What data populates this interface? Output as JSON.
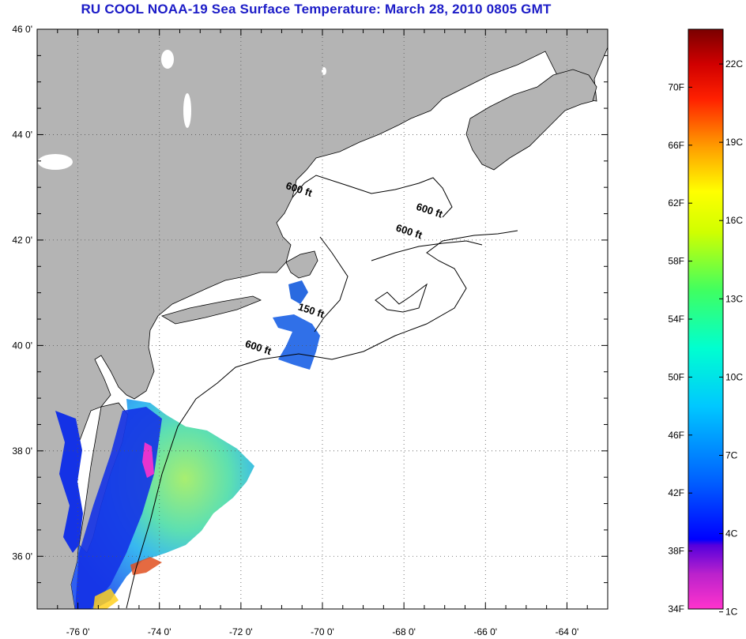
{
  "title": "RU COOL  NOAA-19  Sea Surface Temperature:  March 28, 2010 0805 GMT",
  "map": {
    "lon_range": [
      -77,
      -63
    ],
    "lat_range": [
      35,
      46
    ],
    "lon_ticks": [
      {
        "value": -76,
        "label": "-76 0'"
      },
      {
        "value": -74,
        "label": "-74 0'"
      },
      {
        "value": -72,
        "label": "-72 0'"
      },
      {
        "value": -70,
        "label": "-70 0'"
      },
      {
        "value": -68,
        "label": "-68 0'"
      },
      {
        "value": -66,
        "label": "-66 0'"
      },
      {
        "value": -64,
        "label": "-64 0'"
      }
    ],
    "lat_ticks": [
      {
        "value": 46,
        "label": "46 0'"
      },
      {
        "value": 44,
        "label": "44 0'"
      },
      {
        "value": 42,
        "label": "42 0'"
      },
      {
        "value": 40,
        "label": "40 0'"
      },
      {
        "value": 38,
        "label": "38 0'"
      },
      {
        "value": 36,
        "label": "36 0'"
      }
    ],
    "grid": true,
    "contour_labels": [
      {
        "text": "600 ft",
        "lon": -70.6,
        "lat": 42.9
      },
      {
        "text": "600 ft",
        "lon": -67.4,
        "lat": 42.5
      },
      {
        "text": "600 ft",
        "lon": -67.9,
        "lat": 42.1
      },
      {
        "text": "150 ft",
        "lon": -70.3,
        "lat": 40.6
      },
      {
        "text": "600 ft",
        "lon": -71.6,
        "lat": 39.9
      }
    ],
    "colors": {
      "land": "#b4b4b4",
      "water_nodata": "#ffffff",
      "sst_cold": "#1432e6",
      "sst_mid": "#4ec8f0",
      "sst_warm": "#a8ee70"
    }
  },
  "colorbar": {
    "fahrenheit_labels": [
      "34F",
      "38F",
      "42F",
      "46F",
      "50F",
      "54F",
      "58F",
      "62F",
      "66F",
      "70F"
    ],
    "celsius_labels": [
      "1C",
      "4C",
      "7C",
      "10C",
      "13C",
      "16C",
      "19C",
      "22C"
    ],
    "range_f": [
      34,
      74
    ],
    "colors": [
      "#ff33cc",
      "#9922cc",
      "#0000ff",
      "#0060ff",
      "#00c0ff",
      "#00ffd0",
      "#40ff60",
      "#c0ff00",
      "#ffff00",
      "#ff9900",
      "#ff2000",
      "#e00000",
      "#800000"
    ]
  }
}
